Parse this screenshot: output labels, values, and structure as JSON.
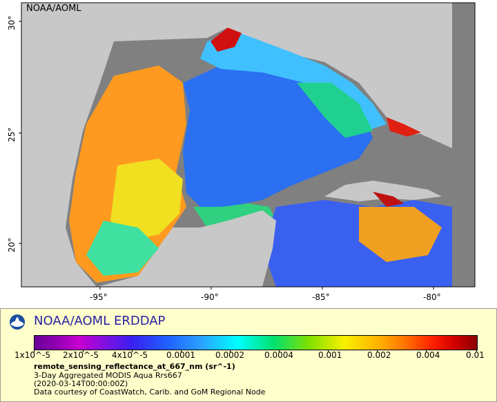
{
  "map": {
    "watermark": "NOAA/AOML",
    "lon_labels": [
      "-95°",
      "-90°",
      "-85°",
      "-80°"
    ],
    "lat_labels": [
      "30°",
      "25°",
      "20°"
    ]
  },
  "legend": {
    "title": "NOAA/AOML ERDDAP",
    "logo_icon": "noaa-logo-icon",
    "colorbar_ticks": [
      "1x10^-5",
      "2x10^-5",
      "4x10^-5",
      "0.0001",
      "0.0002",
      "0.0004",
      "0.001",
      "0.002",
      "0.004",
      "0.01"
    ],
    "variable": "remote_sensing_reflectance_at_667_nm (sr^-1)",
    "line1": "3-Day Aggregated MODIS Aqua Rrs667",
    "line2": "(2020-03-14T00:00:00Z)",
    "line3": "Data courtesy of CoastWatch, Carib. and GoM Regional Node"
  }
}
